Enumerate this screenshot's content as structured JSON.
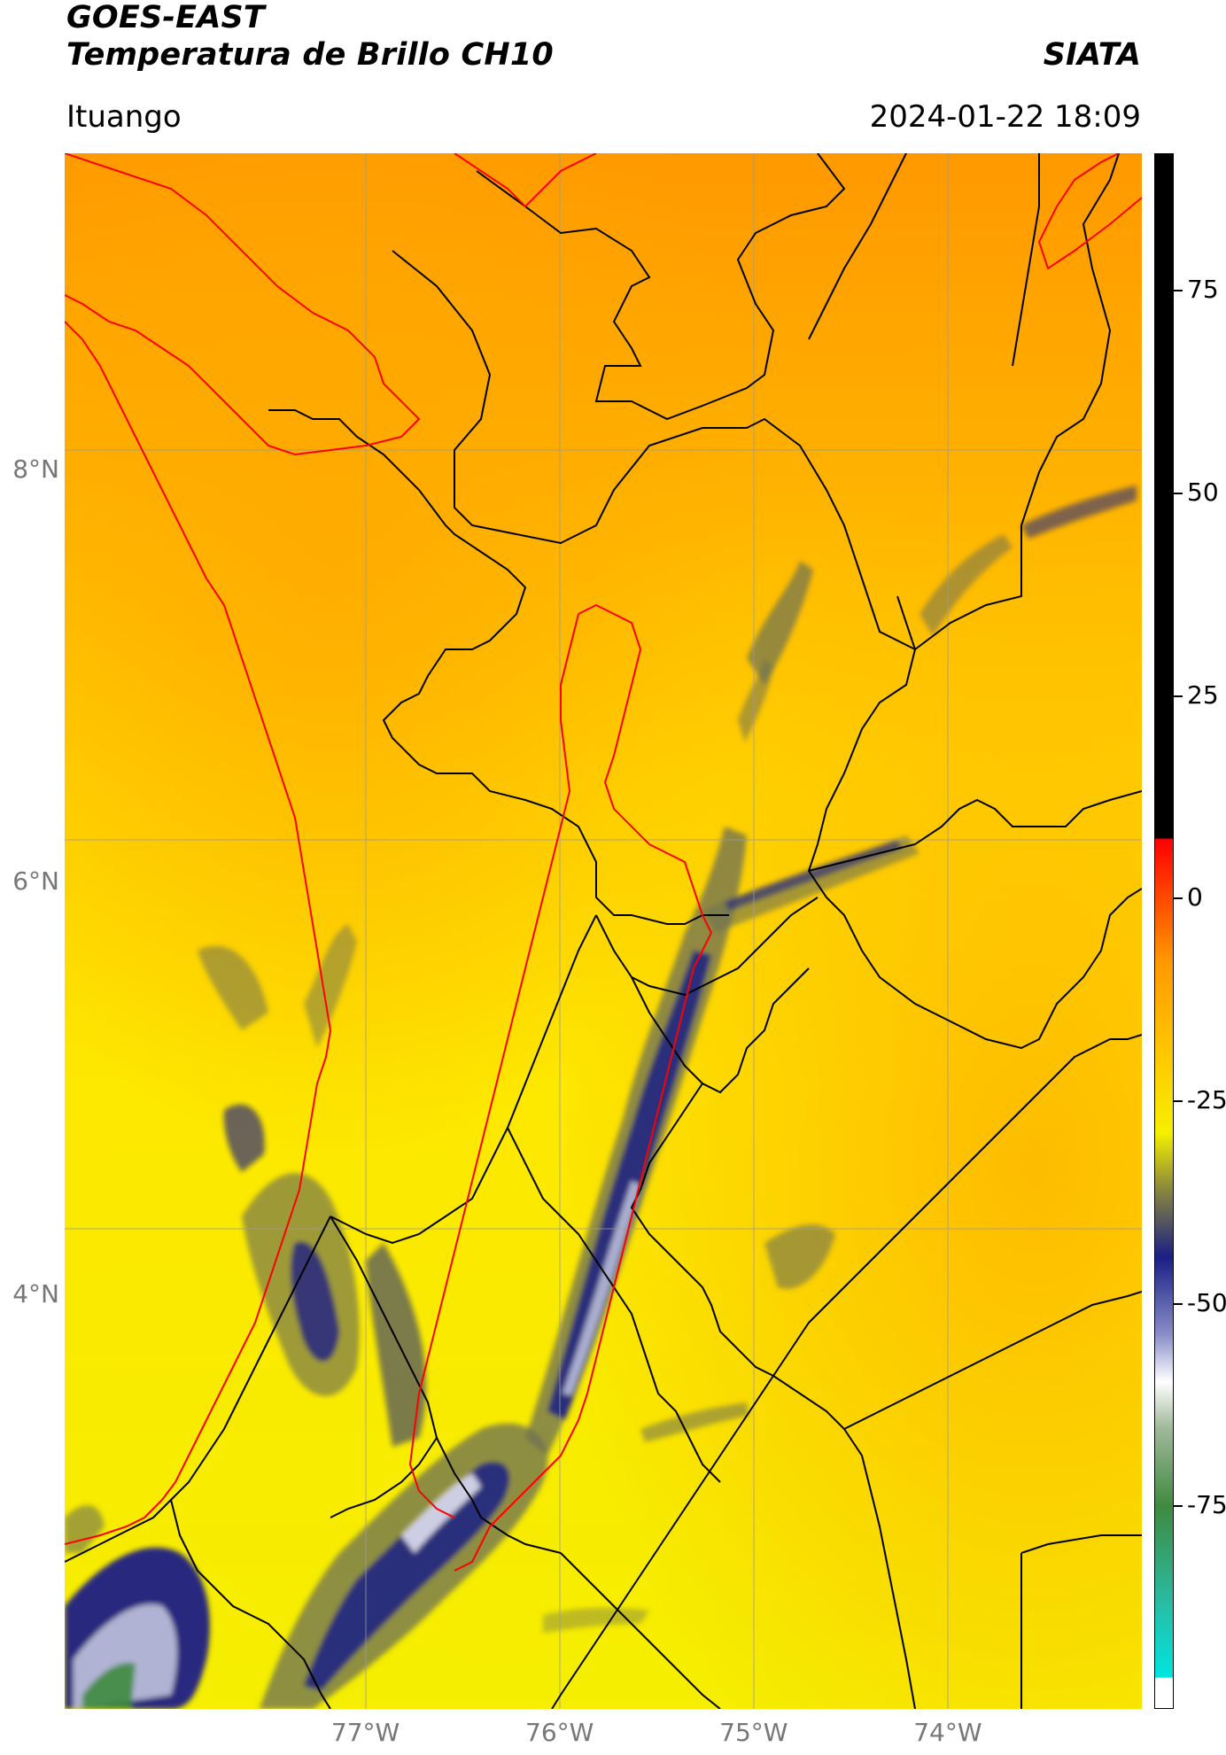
{
  "header": {
    "title_line1": "GOES-EAST",
    "title_line2": "Temperatura de Brillo CH10",
    "brand": "SIATA",
    "location": "Ituango",
    "timestamp": "2024-01-22 18:09"
  },
  "map": {
    "lat_labels": [
      {
        "text": "8°N",
        "value": 8
      },
      {
        "text": "6°N",
        "value": 6
      },
      {
        "text": "4°N",
        "value": 4
      }
    ],
    "lon_labels": [
      {
        "text": "77°W",
        "value": -77
      },
      {
        "text": "76°W",
        "value": -76
      },
      {
        "text": "75°W",
        "value": -75
      },
      {
        "text": "74°W",
        "value": -74
      }
    ],
    "extent": {
      "lon_min": -78.55,
      "lon_max": -73.0,
      "lat_min": 1.99,
      "lat_max": 9.54
    },
    "grid": true,
    "colors": {
      "warm": "#ff9900",
      "mid": "#ffd000",
      "cool": "#f5f000",
      "cloud_dark": "#1a1f86",
      "cloud_mid": "#6b6f56",
      "boundary_black": "#000000",
      "boundary_red": "#ff0000"
    }
  },
  "colorbar": {
    "ticks": [
      {
        "text": "75",
        "value": 75
      },
      {
        "text": "50",
        "value": 50
      },
      {
        "text": "25",
        "value": 25
      },
      {
        "text": "0",
        "value": 0
      },
      {
        "text": "-25",
        "value": -25
      },
      {
        "text": "-50",
        "value": -50
      },
      {
        "text": "-75",
        "value": -75
      }
    ],
    "range": [
      -100,
      92
    ]
  }
}
